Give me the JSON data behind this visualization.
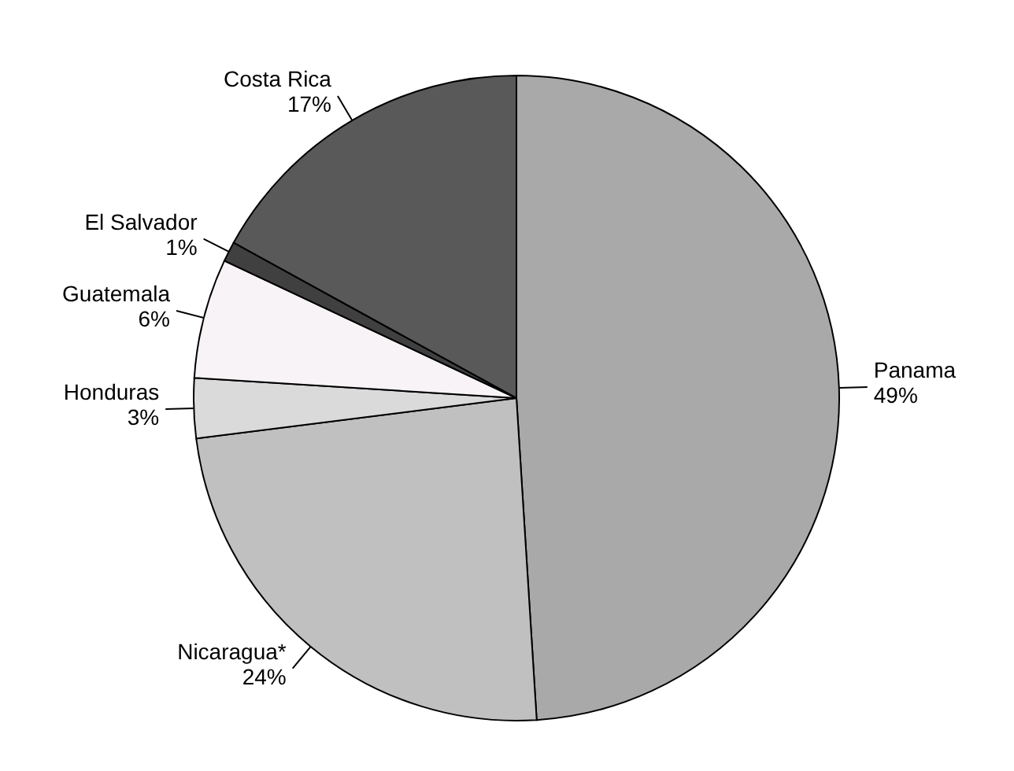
{
  "chart_data": {
    "type": "pie",
    "categories": [
      "Panama",
      "Nicaragua*",
      "Honduras",
      "Guatemala",
      "El Salvador",
      "Costa Rica"
    ],
    "values": [
      49,
      24,
      3,
      6,
      1,
      17
    ],
    "value_labels": [
      "49%",
      "24%",
      "3%",
      "6%",
      "1%",
      "17%"
    ],
    "colors": [
      "#a9a9a9",
      "#c0c0c0",
      "#dadada",
      "#f7f3f7",
      "#404040",
      "#595959"
    ]
  }
}
